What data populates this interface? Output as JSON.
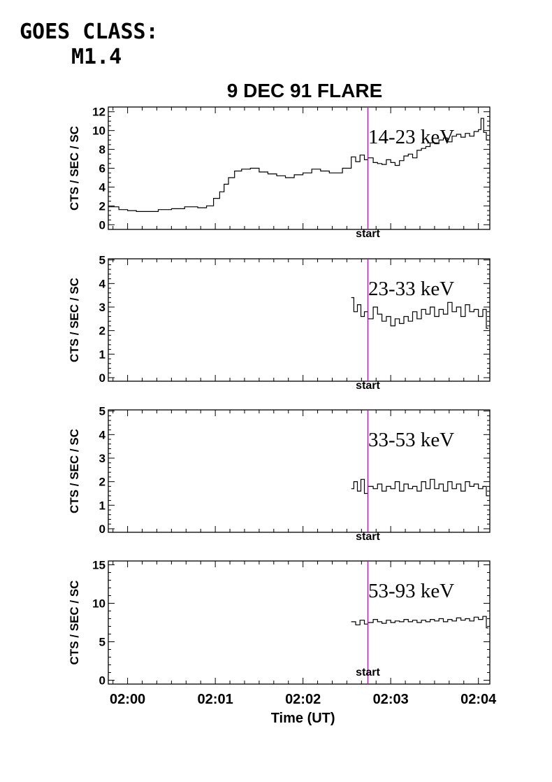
{
  "goes": {
    "line1": "GOES CLASS:",
    "line2": "M1.4"
  },
  "title": "9 DEC 91 FLARE",
  "xlabel": "Time (UT)",
  "ylabel": "CTS / SEC / SC",
  "marker_label": "start",
  "colors": {
    "marker": "#cc00cc",
    "trace": "#000000"
  },
  "chart_data": {
    "type": "line",
    "title": "9 DEC 91 FLARE",
    "xlabel": "Time (UT)",
    "ylabel": "CTS / SEC / SC",
    "x_unit": "minutes after 02:00 UT",
    "xlim": [
      -0.22,
      4.13
    ],
    "x_ticks": [
      "02:00",
      "02:01",
      "02:02",
      "02:03",
      "02:04"
    ],
    "marker": {
      "label": "start",
      "x": 2.74,
      "color": "#cc00cc"
    },
    "panels": [
      {
        "name": "14-23 keV",
        "ylim": [
          -0.5,
          12.5
        ],
        "yticks": [
          0,
          2,
          4,
          6,
          8,
          10,
          12
        ],
        "points": [
          [
            -0.22,
            1.9
          ],
          [
            -0.1,
            1.6
          ],
          [
            0.0,
            1.5
          ],
          [
            0.1,
            1.4
          ],
          [
            0.2,
            1.4
          ],
          [
            0.35,
            1.6
          ],
          [
            0.5,
            1.7
          ],
          [
            0.65,
            1.9
          ],
          [
            0.8,
            1.8
          ],
          [
            0.9,
            2.0
          ],
          [
            0.98,
            2.8
          ],
          [
            1.05,
            3.5
          ],
          [
            1.1,
            4.3
          ],
          [
            1.15,
            5.0
          ],
          [
            1.22,
            5.7
          ],
          [
            1.3,
            5.9
          ],
          [
            1.4,
            6.0
          ],
          [
            1.5,
            5.6
          ],
          [
            1.6,
            5.4
          ],
          [
            1.7,
            5.2
          ],
          [
            1.8,
            5.0
          ],
          [
            1.9,
            5.3
          ],
          [
            2.0,
            5.5
          ],
          [
            2.1,
            5.9
          ],
          [
            2.2,
            5.7
          ],
          [
            2.3,
            5.5
          ],
          [
            2.45,
            6.0
          ],
          [
            2.55,
            7.2
          ],
          [
            2.6,
            6.7
          ],
          [
            2.65,
            7.4
          ],
          [
            2.7,
            6.9
          ],
          [
            2.74,
            7.1
          ],
          [
            2.8,
            6.6
          ],
          [
            2.85,
            6.5
          ],
          [
            2.9,
            6.4
          ],
          [
            2.95,
            6.9
          ],
          [
            3.0,
            6.6
          ],
          [
            3.05,
            6.3
          ],
          [
            3.1,
            6.8
          ],
          [
            3.15,
            7.3
          ],
          [
            3.2,
            7.5
          ],
          [
            3.25,
            7.1
          ],
          [
            3.3,
            7.9
          ],
          [
            3.35,
            8.1
          ],
          [
            3.4,
            8.3
          ],
          [
            3.45,
            8.7
          ],
          [
            3.5,
            8.6
          ],
          [
            3.55,
            9.0
          ],
          [
            3.6,
            9.2
          ],
          [
            3.65,
            8.8
          ],
          [
            3.7,
            9.4
          ],
          [
            3.75,
            9.6
          ],
          [
            3.8,
            9.3
          ],
          [
            3.85,
            9.7
          ],
          [
            3.9,
            9.4
          ],
          [
            3.95,
            9.9
          ],
          [
            4.0,
            10.1
          ],
          [
            4.03,
            11.3
          ],
          [
            4.06,
            9.8
          ],
          [
            4.09,
            9.0
          ]
        ]
      },
      {
        "name": "23-33 keV",
        "ylim": [
          -0.15,
          5.05
        ],
        "yticks": [
          0,
          1,
          2,
          3,
          4,
          5
        ],
        "points": [
          [
            2.55,
            3.4
          ],
          [
            2.58,
            2.8
          ],
          [
            2.62,
            3.1
          ],
          [
            2.66,
            2.6
          ],
          [
            2.7,
            2.8
          ],
          [
            2.74,
            2.5
          ],
          [
            2.8,
            3.0
          ],
          [
            2.85,
            2.7
          ],
          [
            2.9,
            2.4
          ],
          [
            2.95,
            2.6
          ],
          [
            3.0,
            2.2
          ],
          [
            3.05,
            2.5
          ],
          [
            3.1,
            2.3
          ],
          [
            3.15,
            2.6
          ],
          [
            3.2,
            2.4
          ],
          [
            3.25,
            2.8
          ],
          [
            3.3,
            2.5
          ],
          [
            3.35,
            2.9
          ],
          [
            3.4,
            2.7
          ],
          [
            3.45,
            3.0
          ],
          [
            3.5,
            2.6
          ],
          [
            3.55,
            2.9
          ],
          [
            3.6,
            2.7
          ],
          [
            3.65,
            3.2
          ],
          [
            3.7,
            2.8
          ],
          [
            3.75,
            3.0
          ],
          [
            3.8,
            2.6
          ],
          [
            3.85,
            3.1
          ],
          [
            3.9,
            2.8
          ],
          [
            3.95,
            2.9
          ],
          [
            4.0,
            2.6
          ],
          [
            4.05,
            2.9
          ],
          [
            4.09,
            2.1
          ]
        ]
      },
      {
        "name": "33-53 keV",
        "ylim": [
          -0.15,
          5.05
        ],
        "yticks": [
          0,
          1,
          2,
          3,
          4,
          5
        ],
        "points": [
          [
            2.55,
            1.7
          ],
          [
            2.58,
            2.0
          ],
          [
            2.62,
            1.6
          ],
          [
            2.66,
            2.1
          ],
          [
            2.7,
            1.5
          ],
          [
            2.74,
            1.8
          ],
          [
            2.8,
            1.7
          ],
          [
            2.85,
            1.9
          ],
          [
            2.9,
            1.6
          ],
          [
            2.95,
            1.8
          ],
          [
            3.0,
            1.7
          ],
          [
            3.05,
            2.0
          ],
          [
            3.1,
            1.6
          ],
          [
            3.15,
            1.9
          ],
          [
            3.2,
            1.7
          ],
          [
            3.25,
            1.8
          ],
          [
            3.3,
            1.6
          ],
          [
            3.35,
            2.0
          ],
          [
            3.4,
            1.7
          ],
          [
            3.45,
            2.1
          ],
          [
            3.5,
            1.7
          ],
          [
            3.55,
            1.9
          ],
          [
            3.6,
            1.6
          ],
          [
            3.65,
            2.0
          ],
          [
            3.7,
            1.7
          ],
          [
            3.75,
            1.9
          ],
          [
            3.8,
            1.6
          ],
          [
            3.85,
            2.0
          ],
          [
            3.9,
            1.8
          ],
          [
            3.95,
            1.9
          ],
          [
            4.0,
            1.7
          ],
          [
            4.05,
            1.8
          ],
          [
            4.09,
            1.4
          ]
        ]
      },
      {
        "name": "53-93 keV",
        "ylim": [
          -0.5,
          15.5
        ],
        "yticks": [
          0,
          5,
          10,
          15
        ],
        "points": [
          [
            2.55,
            7.6
          ],
          [
            2.6,
            7.2
          ],
          [
            2.65,
            7.8
          ],
          [
            2.7,
            7.3
          ],
          [
            2.74,
            7.5
          ],
          [
            2.8,
            7.9
          ],
          [
            2.85,
            7.6
          ],
          [
            2.9,
            7.4
          ],
          [
            2.95,
            7.8
          ],
          [
            3.0,
            7.5
          ],
          [
            3.05,
            7.7
          ],
          [
            3.1,
            7.6
          ],
          [
            3.15,
            7.9
          ],
          [
            3.2,
            7.6
          ],
          [
            3.25,
            7.8
          ],
          [
            3.3,
            7.5
          ],
          [
            3.35,
            7.8
          ],
          [
            3.4,
            7.6
          ],
          [
            3.45,
            7.9
          ],
          [
            3.5,
            7.7
          ],
          [
            3.55,
            8.0
          ],
          [
            3.6,
            7.6
          ],
          [
            3.65,
            7.9
          ],
          [
            3.7,
            7.7
          ],
          [
            3.75,
            8.1
          ],
          [
            3.8,
            7.8
          ],
          [
            3.85,
            8.0
          ],
          [
            3.9,
            7.7
          ],
          [
            3.95,
            8.2
          ],
          [
            4.0,
            7.9
          ],
          [
            4.05,
            8.3
          ],
          [
            4.09,
            6.8
          ]
        ]
      }
    ]
  }
}
